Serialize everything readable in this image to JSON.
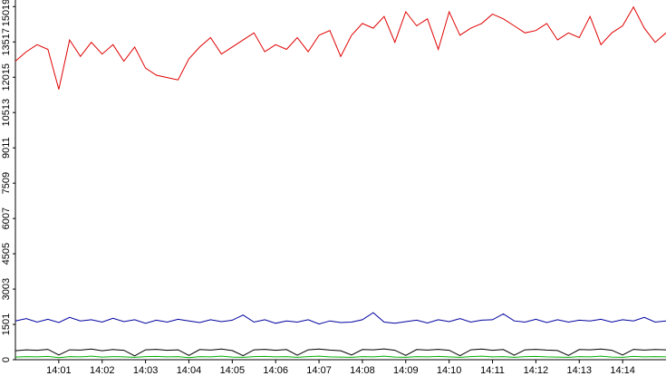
{
  "chart_data": {
    "type": "line",
    "x": [
      0,
      0.25,
      0.5,
      0.75,
      1,
      1.25,
      1.5,
      1.75,
      2,
      2.25,
      2.5,
      2.75,
      3,
      3.25,
      3.5,
      3.75,
      4,
      4.25,
      4.5,
      4.75,
      5,
      5.25,
      5.5,
      5.75,
      6,
      6.25,
      6.5,
      6.75,
      7,
      7.25,
      7.5,
      7.75,
      8,
      8.25,
      8.5,
      8.75,
      9,
      9.25,
      9.5,
      9.75,
      10,
      10.25,
      10.5,
      10.75,
      11,
      11.25,
      11.5,
      11.75,
      12,
      12.25,
      12.5,
      12.75,
      13,
      13.25,
      13.5,
      13.75,
      14,
      14.25,
      14.5,
      14.75,
      15
    ],
    "series": [
      {
        "color": "#e00000",
        "values": [
          12700,
          13100,
          13400,
          13200,
          11500,
          13600,
          12900,
          13500,
          13000,
          13400,
          12700,
          13300,
          12400,
          12100,
          12000,
          11900,
          12800,
          13300,
          13700,
          13000,
          13300,
          13600,
          13900,
          13100,
          13400,
          13200,
          13700,
          13100,
          13800,
          14000,
          12900,
          13800,
          14300,
          14100,
          14600,
          13500,
          14800,
          14200,
          14500,
          13200,
          14800,
          13800,
          14100,
          14300,
          14700,
          14500,
          14200,
          13900,
          14000,
          14300,
          13600,
          13900,
          13700,
          14600,
          13400,
          13900,
          14200,
          15000,
          14100,
          13500,
          13900
        ]
      },
      {
        "color": "#0000a0",
        "values": [
          1650,
          1750,
          1600,
          1720,
          1580,
          1800,
          1650,
          1700,
          1600,
          1760,
          1620,
          1700,
          1550,
          1680,
          1600,
          1720,
          1650,
          1580,
          1700,
          1620,
          1680,
          1900,
          1600,
          1700,
          1550,
          1650,
          1600,
          1700,
          1520,
          1650,
          1580,
          1600,
          1700,
          2000,
          1600,
          1550,
          1620,
          1680,
          1560,
          1700,
          1620,
          1750,
          1600,
          1680,
          1700,
          1950,
          1650,
          1600,
          1720,
          1580,
          1700,
          1600,
          1680,
          1650,
          1720,
          1600,
          1700,
          1650,
          1800,
          1600,
          1650
        ]
      },
      {
        "color": "#000000",
        "values": [
          380,
          420,
          400,
          440,
          200,
          420,
          410,
          450,
          380,
          430,
          400,
          160,
          420,
          440,
          400,
          420,
          180,
          430,
          410,
          450,
          390,
          170,
          420,
          440,
          400,
          430,
          190,
          420,
          450,
          410,
          380,
          200,
          430,
          420,
          460,
          400,
          180,
          430,
          410,
          440,
          400,
          170,
          420,
          450,
          400,
          430,
          190,
          420,
          440,
          410,
          390,
          180,
          430,
          420,
          450,
          400,
          200,
          440,
          410,
          430,
          420
        ]
      },
      {
        "color": "#00b000",
        "values": [
          110,
          130,
          120,
          140,
          90,
          130,
          120,
          150,
          110,
          130,
          120,
          100,
          130,
          140,
          120,
          130,
          90,
          130,
          120,
          150,
          110,
          100,
          130,
          140,
          120,
          130,
          100,
          130,
          150,
          120,
          110,
          100,
          130,
          120,
          150,
          110,
          100,
          130,
          120,
          140,
          120,
          100,
          130,
          150,
          120,
          130,
          100,
          130,
          140,
          120,
          110,
          100,
          130,
          120,
          150,
          110,
          100,
          140,
          120,
          130,
          120
        ]
      }
    ],
    "xlim": [
      0,
      15
    ],
    "xticks": [
      {
        "value": 1,
        "label": "14:01"
      },
      {
        "value": 2,
        "label": "14:02"
      },
      {
        "value": 3,
        "label": "14:03"
      },
      {
        "value": 4,
        "label": "14:04"
      },
      {
        "value": 5,
        "label": "14:05"
      },
      {
        "value": 6,
        "label": "14:06"
      },
      {
        "value": 7,
        "label": "14:07"
      },
      {
        "value": 8,
        "label": "14:08"
      },
      {
        "value": 9,
        "label": "14:09"
      },
      {
        "value": 10,
        "label": "14:10"
      },
      {
        "value": 11,
        "label": "14:11"
      },
      {
        "value": 12,
        "label": "14:12"
      },
      {
        "value": 13,
        "label": "14:13"
      },
      {
        "value": 14,
        "label": "14:14"
      }
    ],
    "ylim": [
      0,
      15300
    ],
    "yticks": [
      0,
      1501,
      3003,
      4505,
      6007,
      7509,
      9011,
      10513,
      12015,
      13517,
      15019
    ]
  }
}
